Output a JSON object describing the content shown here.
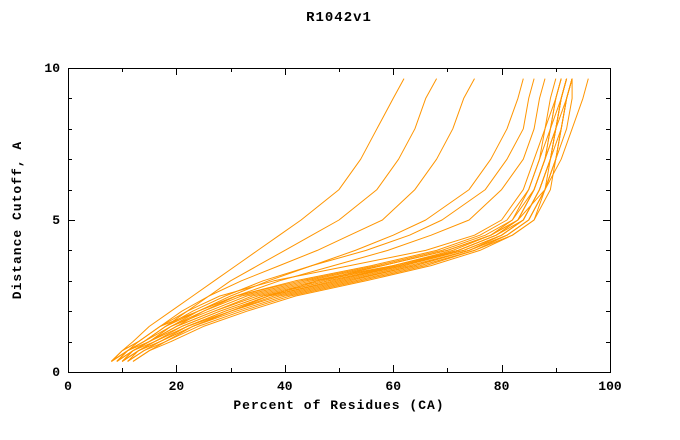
{
  "title": "R1042v1",
  "chart_data": {
    "type": "line",
    "title": "R1042v1",
    "xlabel": "Percent of Residues (CA)",
    "ylabel": "Distance Cutoff, A",
    "xlim": [
      0,
      100
    ],
    "ylim": [
      0,
      10
    ],
    "xticks": [
      0,
      20,
      40,
      60,
      80,
      100
    ],
    "yticks": [
      0,
      5,
      10
    ],
    "x_minor_step": 10,
    "y_minor_step": 1,
    "grid": false,
    "legend": "none",
    "line_color": "#ff9500",
    "axis_color": "#000000",
    "background": "#ffffff",
    "y_grid": [
      0.35,
      0.7,
      1.0,
      1.5,
      2.0,
      2.5,
      3.0,
      3.5,
      4.0,
      4.5,
      5.0,
      6.0,
      7.0,
      8.0,
      9.0,
      9.65
    ],
    "series": [
      [
        8,
        10,
        12,
        15,
        19,
        23,
        27,
        31,
        35,
        39,
        43,
        50,
        54,
        57,
        60,
        62
      ],
      [
        9,
        11,
        14,
        18,
        22,
        26,
        30,
        35,
        40,
        45,
        50,
        57,
        61,
        64,
        66,
        68
      ],
      [
        8,
        11,
        13,
        17,
        21,
        26,
        32,
        39,
        46,
        52,
        58,
        64,
        68,
        71,
        73,
        75
      ],
      [
        10,
        12,
        15,
        19,
        24,
        30,
        37,
        45,
        53,
        60,
        66,
        74,
        78,
        81,
        83,
        84
      ],
      [
        9,
        11,
        14,
        18,
        23,
        29,
        36,
        45,
        55,
        63,
        69,
        77,
        81,
        84,
        85,
        86
      ],
      [
        10,
        12,
        15,
        20,
        25,
        31,
        39,
        49,
        59,
        67,
        74,
        80,
        84,
        86,
        87,
        88
      ],
      [
        8,
        10,
        13,
        17,
        22,
        28,
        38,
        52,
        66,
        75,
        80,
        84,
        86,
        88,
        89,
        90
      ],
      [
        9,
        11,
        14,
        18,
        24,
        31,
        42,
        56,
        68,
        76,
        81,
        85,
        87,
        88,
        90,
        91
      ],
      [
        10,
        12,
        15,
        19,
        25,
        32,
        44,
        58,
        70,
        78,
        82,
        86,
        88,
        89,
        90,
        91
      ],
      [
        8,
        11,
        14,
        19,
        26,
        33,
        45,
        60,
        72,
        79,
        83,
        86,
        88,
        90,
        91,
        92
      ],
      [
        9,
        12,
        15,
        20,
        27,
        34,
        46,
        61,
        73,
        80,
        84,
        87,
        89,
        90,
        91,
        92
      ],
      [
        10,
        13,
        16,
        21,
        28,
        36,
        48,
        62,
        73,
        80,
        84,
        87,
        89,
        90,
        92,
        93
      ],
      [
        11,
        13,
        17,
        22,
        29,
        37,
        50,
        63,
        74,
        81,
        85,
        88,
        89,
        91,
        92,
        93
      ],
      [
        8,
        10,
        13,
        17,
        24,
        31,
        43,
        57,
        69,
        77,
        82,
        85,
        87,
        89,
        90,
        91
      ],
      [
        9,
        12,
        15,
        20,
        27,
        35,
        47,
        60,
        71,
        78,
        83,
        86,
        88,
        89,
        91,
        92
      ],
      [
        10,
        13,
        16,
        22,
        29,
        37,
        49,
        62,
        72,
        79,
        83,
        86,
        88,
        90,
        91,
        92
      ],
      [
        11,
        14,
        17,
        23,
        30,
        38,
        51,
        64,
        74,
        80,
        84,
        87,
        89,
        90,
        91,
        92
      ],
      [
        9,
        12,
        16,
        22,
        30,
        39,
        52,
        64,
        74,
        81,
        85,
        88,
        90,
        91,
        92,
        93
      ],
      [
        10,
        13,
        17,
        23,
        31,
        40,
        53,
        65,
        75,
        81,
        85,
        88,
        90,
        91,
        92,
        93
      ],
      [
        8,
        11,
        15,
        21,
        28,
        36,
        48,
        61,
        72,
        79,
        84,
        87,
        89,
        90,
        91,
        92
      ],
      [
        12,
        15,
        19,
        25,
        33,
        42,
        55,
        67,
        76,
        82,
        86,
        89,
        90,
        92,
        93,
        93
      ],
      [
        11,
        14,
        18,
        24,
        32,
        41,
        54,
        66,
        75,
        82,
        86,
        88,
        90,
        91,
        92,
        93
      ],
      [
        12,
        15,
        18,
        23,
        30,
        37,
        46,
        58,
        70,
        78,
        83,
        88,
        91,
        93,
        95,
        96
      ]
    ]
  }
}
